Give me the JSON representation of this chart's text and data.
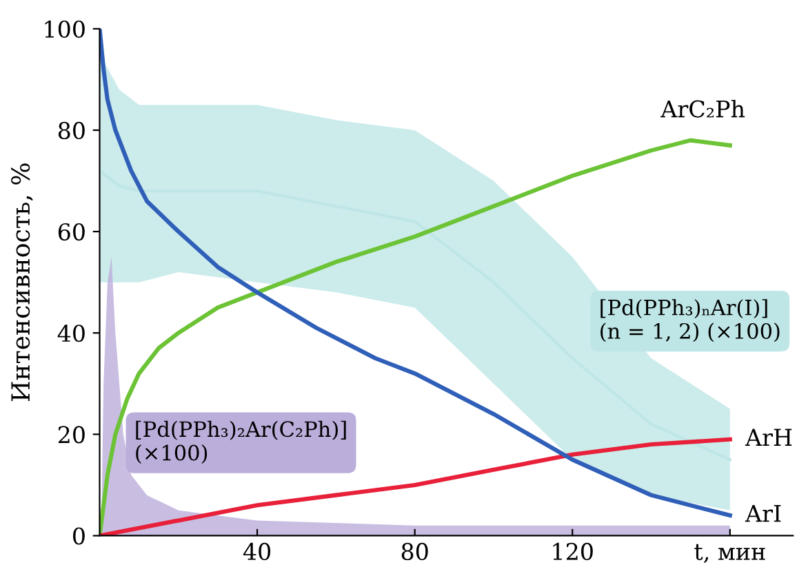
{
  "chart_data": {
    "type": "line",
    "ylabel": "Интенсивность, %",
    "xlim": [
      0,
      176
    ],
    "ylim": [
      0,
      100
    ],
    "xticks": [
      40,
      80,
      120,
      {
        "value": 160,
        "label": "t, мин"
      }
    ],
    "yticks": [
      0,
      20,
      40,
      60,
      80,
      100
    ],
    "grid": false,
    "legend": false,
    "series": [
      {
        "name": "[Pd(PPh₃)ₙAr(I)]\n(n = 1, 2) (×100)",
        "color": "#bfe6e6",
        "x": [
          0,
          5,
          10,
          20,
          40,
          60,
          80,
          100,
          120,
          140,
          160
        ],
        "values": [
          72,
          69,
          68,
          68,
          68,
          65,
          62,
          50,
          35,
          22,
          15
        ],
        "lower": [
          50,
          50,
          50,
          52,
          50,
          48,
          45,
          30,
          15,
          8,
          5
        ],
        "upper": [
          95,
          88,
          85,
          85,
          85,
          82,
          80,
          70,
          55,
          35,
          25
        ]
      },
      {
        "name": "[Pd(PPh₃)₂Ar(C₂Ph)]\n(×100)",
        "type": "area",
        "color": "#bcaedb",
        "x": [
          0,
          0.5,
          1,
          2,
          3,
          4,
          6,
          8,
          12,
          20,
          40,
          80,
          120,
          160
        ],
        "values": [
          0,
          5,
          30,
          50,
          55,
          40,
          20,
          12,
          8,
          5,
          3,
          2,
          2,
          2
        ]
      },
      {
        "name": "ArC₂Ph",
        "color": "#6cc335",
        "x": [
          0,
          1,
          2,
          4,
          7,
          10,
          15,
          20,
          30,
          40,
          60,
          80,
          100,
          120,
          140,
          150,
          160
        ],
        "values": [
          0,
          6,
          12,
          20,
          27,
          32,
          37,
          40,
          45,
          48,
          54,
          59,
          65,
          71,
          76,
          78,
          77
        ]
      },
      {
        "name": "ArH",
        "color": "#e8203a",
        "x": [
          0,
          20,
          40,
          60,
          80,
          100,
          120,
          140,
          160
        ],
        "values": [
          0,
          3,
          6,
          8,
          10,
          13,
          16,
          18,
          19
        ]
      },
      {
        "name": "ArI",
        "color": "#2f5fb8",
        "x": [
          0,
          1,
          2,
          4,
          8,
          12,
          20,
          30,
          40,
          55,
          70,
          80,
          100,
          120,
          140,
          160
        ],
        "values": [
          100,
          92,
          86,
          80,
          72,
          66,
          60,
          53,
          48,
          41,
          35,
          32,
          24,
          15,
          8,
          4
        ]
      }
    ]
  }
}
